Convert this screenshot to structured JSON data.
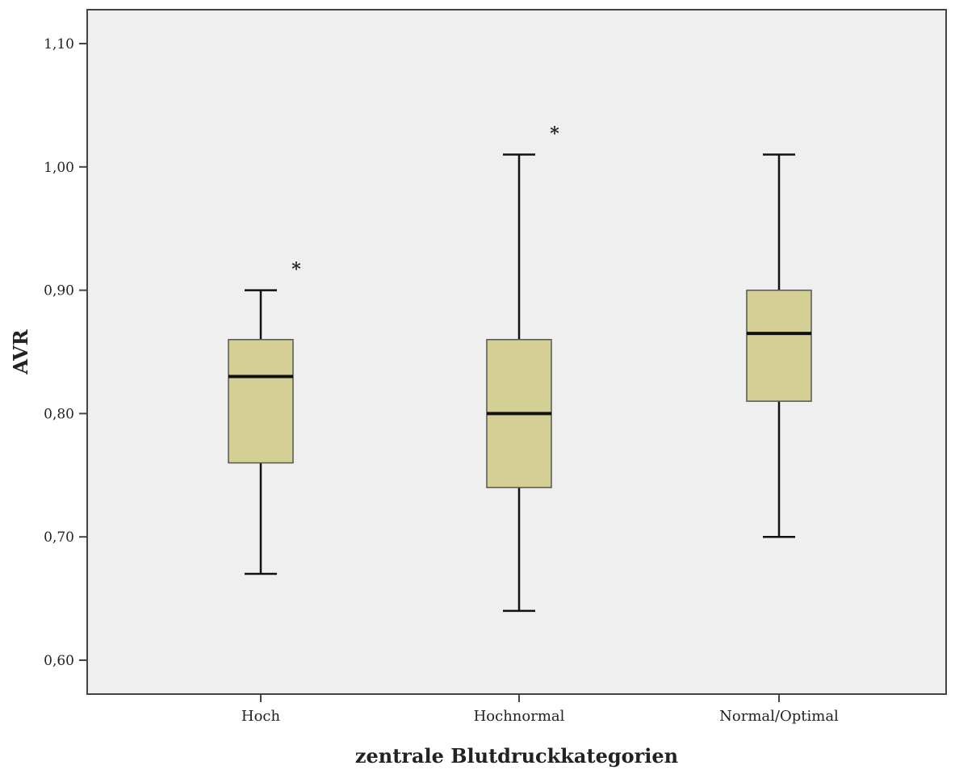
{
  "chart_data": {
    "type": "boxplot",
    "xlabel": "zentrale Blutdruckkategorien",
    "ylabel": "AVR",
    "ylim": [
      0.575,
      1.13
    ],
    "y_ticks": [
      {
        "value": 0.6,
        "label": "0,60"
      },
      {
        "value": 0.7,
        "label": "0,70"
      },
      {
        "value": 0.8,
        "label": "0,80"
      },
      {
        "value": 0.9,
        "label": "0,90"
      },
      {
        "value": 1.0,
        "label": "1,00"
      },
      {
        "value": 1.1,
        "label": "1,10"
      }
    ],
    "categories": [
      "Hoch",
      "Hochnormal",
      "Normal/Optimal"
    ],
    "boxes": [
      {
        "category": "Hoch",
        "min": 0.67,
        "q1": 0.76,
        "median": 0.83,
        "q3": 0.86,
        "max": 0.9,
        "outliers": [
          0.92
        ]
      },
      {
        "category": "Hochnormal",
        "min": 0.64,
        "q1": 0.74,
        "median": 0.8,
        "q3": 0.86,
        "max": 1.01,
        "outliers": [
          1.03
        ]
      },
      {
        "category": "Normal/Optimal",
        "min": 0.7,
        "q1": 0.81,
        "median": 0.865,
        "q3": 0.9,
        "max": 1.01,
        "outliers": []
      }
    ],
    "outlier_marker": "*",
    "grid": false,
    "colors": {
      "plot_background": "#efefef",
      "box_fill": "#d3cf95",
      "box_stroke": "#555555",
      "line": "#111111",
      "frame": "#444444"
    }
  }
}
